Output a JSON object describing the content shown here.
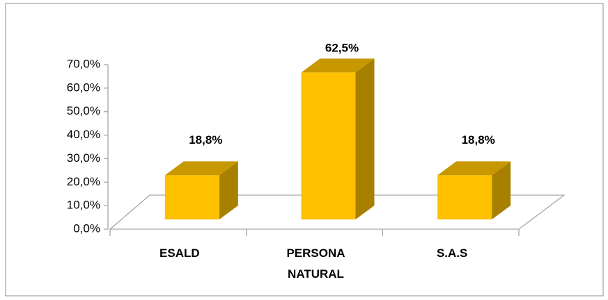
{
  "chart_data": {
    "type": "bar3d",
    "categories": [
      "ESALD",
      "PERSONA NATURAL",
      "S.A.S"
    ],
    "values": [
      18.8,
      62.5,
      18.8
    ],
    "value_labels": [
      "18,8%",
      "62,5%",
      "18,8%"
    ],
    "color": "#ffc000",
    "ylim": [
      0,
      70
    ],
    "yticks": [
      {
        "value": 0,
        "label": "0,0%"
      },
      {
        "value": 10,
        "label": "10,0%"
      },
      {
        "value": 20,
        "label": "20,0%"
      },
      {
        "value": 30,
        "label": "30,0%"
      },
      {
        "value": 40,
        "label": "40,0%"
      },
      {
        "value": 50,
        "label": "50,0%"
      },
      {
        "value": 60,
        "label": "60,0%"
      },
      {
        "value": 70,
        "label": "70,0%"
      }
    ]
  }
}
